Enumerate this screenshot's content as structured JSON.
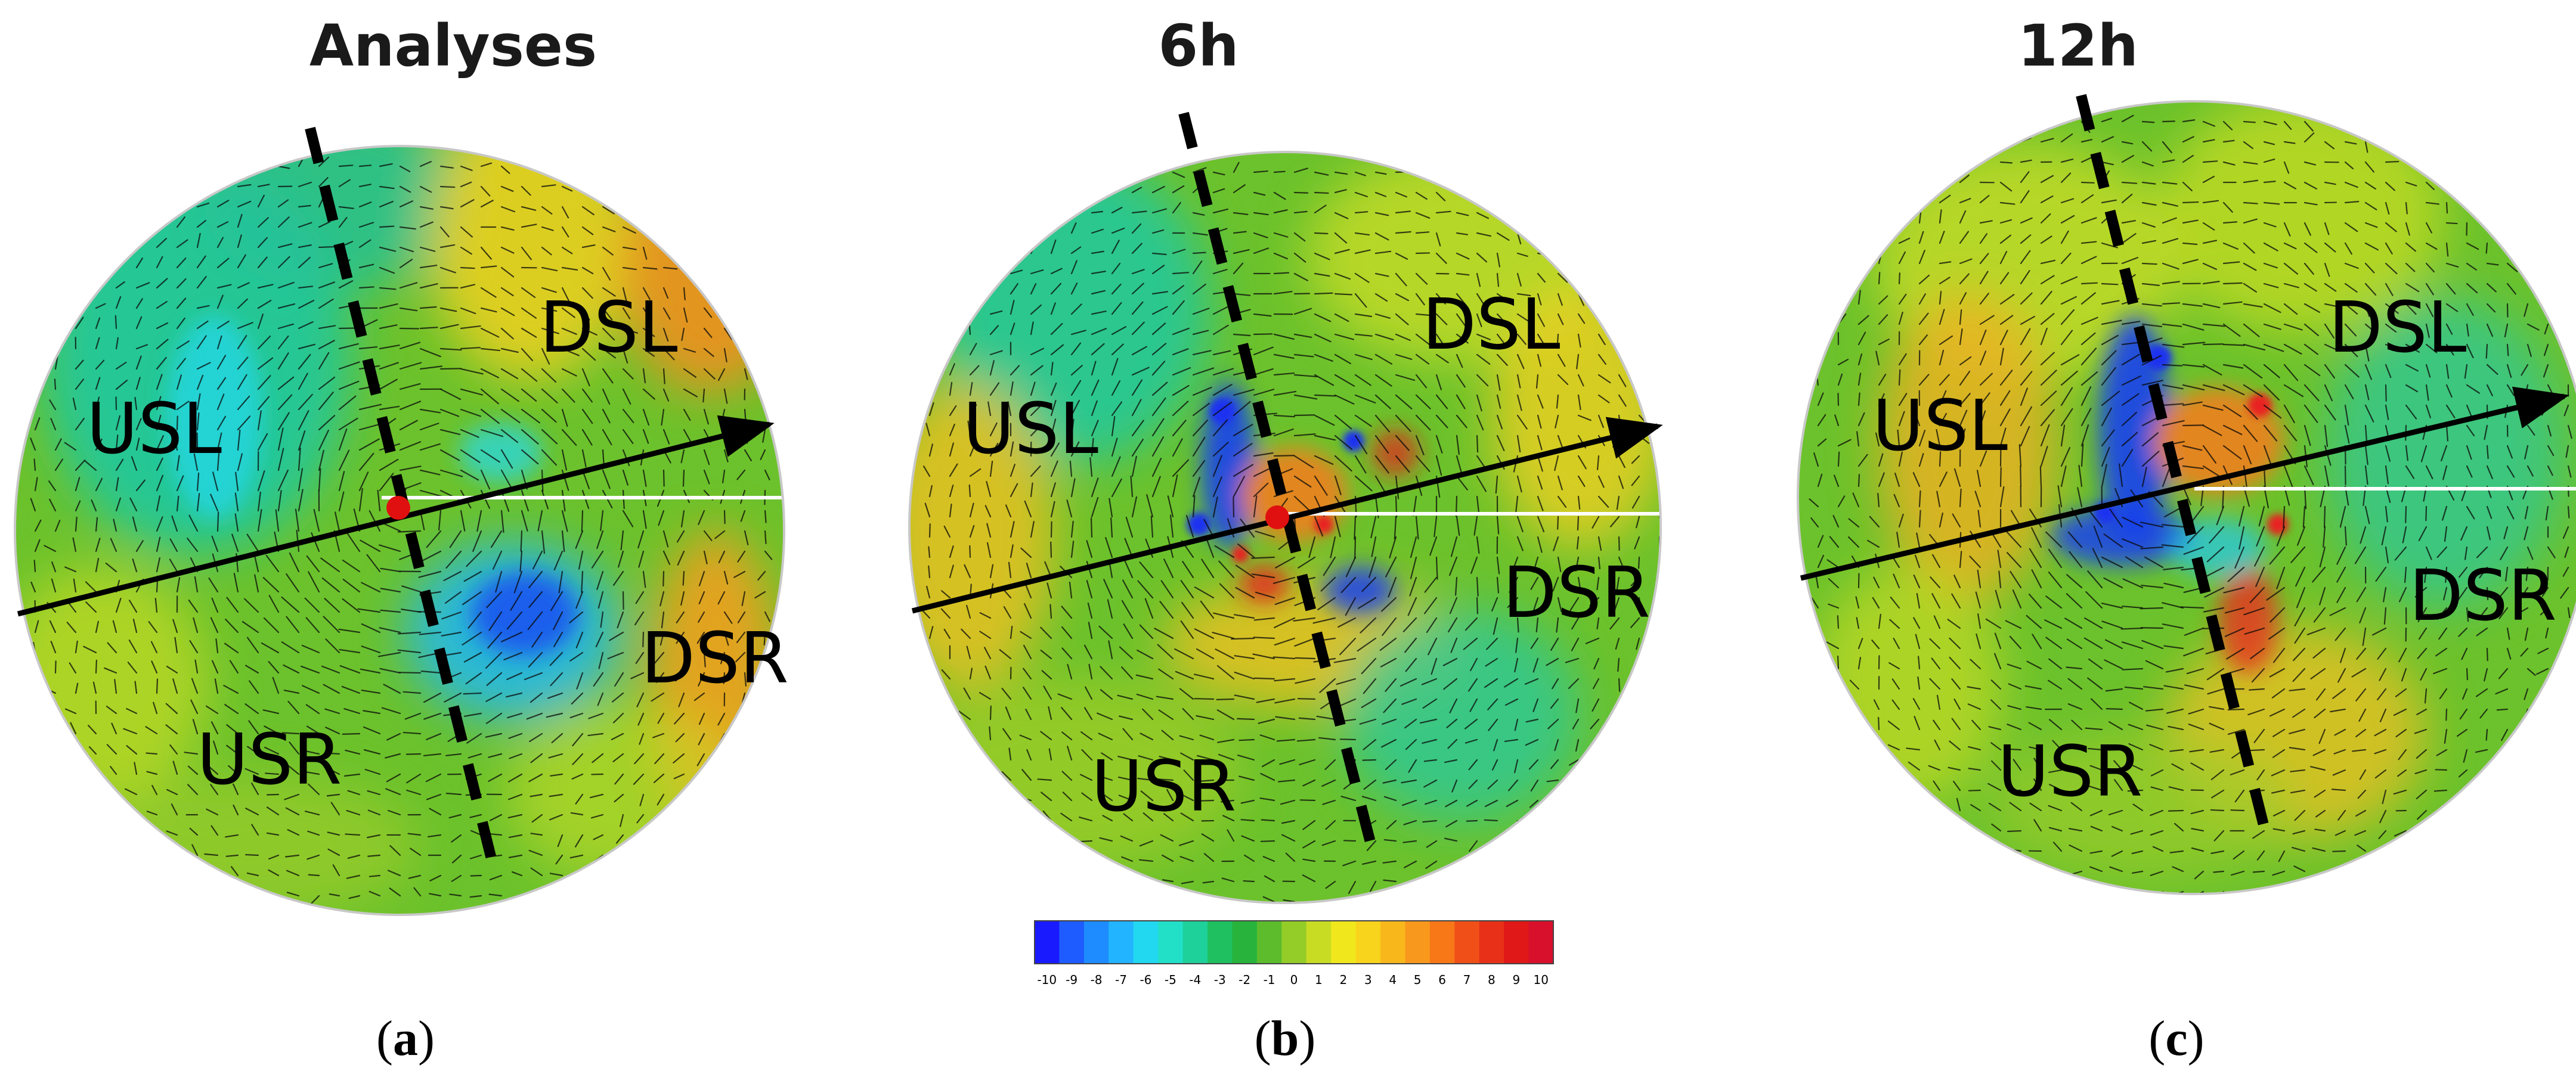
{
  "panels": [
    {
      "id": "a",
      "title": "Analyses",
      "caption_letter": "a",
      "labels": [
        "USL",
        "DSL",
        "USR",
        "DSR"
      ]
    },
    {
      "id": "b",
      "title": "6h",
      "caption_letter": "b",
      "labels": [
        "USL",
        "DSL",
        "USR",
        "DSR"
      ]
    },
    {
      "id": "c",
      "title": "12h",
      "caption_letter": "c",
      "labels": [
        "USL",
        "DSL",
        "USR",
        "DSR"
      ]
    }
  ],
  "colorbar": {
    "ticks": [
      "-10",
      "-9",
      "-8",
      "-7",
      "-6",
      "-5",
      "-4",
      "-3",
      "-2",
      "-1",
      "0",
      "1",
      "2",
      "3",
      "4",
      "5",
      "6",
      "7",
      "8",
      "9",
      "10"
    ],
    "colors": [
      "#1a1aff",
      "#1e5cff",
      "#1e8cff",
      "#22b4ff",
      "#22d8f0",
      "#22e0c8",
      "#1ed09a",
      "#1ec060",
      "#28b43c",
      "#5cbc2c",
      "#94cc28",
      "#c8dc24",
      "#f0e81c",
      "#f8d41c",
      "#f8b81c",
      "#f8981c",
      "#f87818",
      "#f05018",
      "#e83018",
      "#e01818",
      "#d8102c"
    ]
  },
  "colors": {
    "field_base": "#6cc22c",
    "warm": "#f0a020",
    "cool": "#28c8e8",
    "strong_cool": "#1a40f0",
    "strong_warm": "#e82020",
    "shear_arrow": "#000000",
    "motion_line": "#000000",
    "center_dot": "#e01010"
  }
}
